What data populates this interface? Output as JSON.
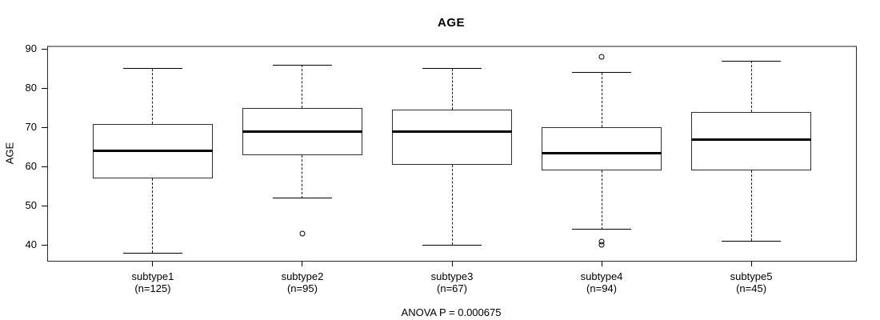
{
  "title": "AGE",
  "y_axis": {
    "label": "AGE"
  },
  "footer": {
    "annotation": "ANOVA P = 0.000675"
  },
  "colors": {
    "line": "#000000",
    "background": "#ffffff",
    "frame_top": "#8e8e8e",
    "frame": "#2a2a2a"
  },
  "chart_data": {
    "type": "boxplot",
    "title": "AGE",
    "ylabel": "AGE",
    "xlabel": "",
    "annotation": "ANOVA P = 0.000675",
    "ylim": [
      36,
      90.5
    ],
    "yticks": [
      40,
      50,
      60,
      70,
      80,
      90
    ],
    "grid": false,
    "legend": null,
    "groups": [
      {
        "label": "subtype1",
        "sublabel": "(n=125)",
        "whisker_low": 38,
        "q1": 57,
        "median": 64,
        "q3": 71,
        "whisker_high": 85,
        "outliers": []
      },
      {
        "label": "subtype2",
        "sublabel": "(n=95)",
        "whisker_low": 52,
        "q1": 63,
        "median": 69,
        "q3": 75,
        "whisker_high": 86,
        "outliers": [
          43
        ]
      },
      {
        "label": "subtype3",
        "sublabel": "(n=67)",
        "whisker_low": 40,
        "q1": 60.5,
        "median": 69,
        "q3": 74.5,
        "whisker_high": 85,
        "outliers": []
      },
      {
        "label": "subtype4",
        "sublabel": "(n=94)",
        "whisker_low": 44,
        "q1": 59,
        "median": 63.5,
        "q3": 70,
        "whisker_high": 84,
        "outliers": [
          88,
          41,
          40
        ]
      },
      {
        "label": "subtype5",
        "sublabel": "(n=45)",
        "whisker_low": 41,
        "q1": 59,
        "median": 67,
        "q3": 74,
        "whisker_high": 87,
        "outliers": []
      }
    ]
  }
}
